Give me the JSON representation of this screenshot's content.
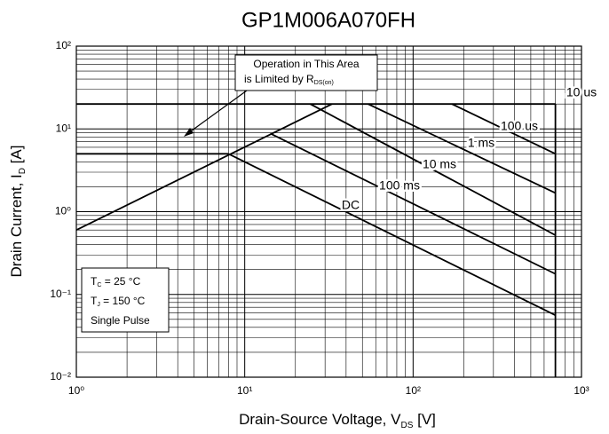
{
  "chart_data": {
    "type": "line",
    "title": "GP1M006A070FH",
    "xlabel": {
      "text": "Drain-Source Voltage, V",
      "sub": "DS",
      "rest": " [V]"
    },
    "ylabel": {
      "text": "Drain Current, I",
      "sub": "D",
      "rest": " [A]"
    },
    "log_x": true,
    "log_y": true,
    "grid": true,
    "xlim": [
      1,
      1000
    ],
    "ylim": [
      0.01,
      100
    ],
    "xticks": [
      {
        "value": 1,
        "label": "10⁰"
      },
      {
        "value": 10,
        "label": "10¹"
      },
      {
        "value": 100,
        "label": "10²"
      },
      {
        "value": 1000,
        "label": "10³"
      }
    ],
    "yticks": [
      {
        "value": 0.01,
        "label": "10⁻²"
      },
      {
        "value": 0.1,
        "label": "10⁻¹"
      },
      {
        "value": 1,
        "label": "10⁰"
      },
      {
        "value": 10,
        "label": "10¹"
      },
      {
        "value": 100,
        "label": "10²"
      }
    ],
    "series": [
      {
        "color": "#000000",
        "x": [
          1,
          33
        ],
        "values": [
          0.6,
          20
        ]
      },
      {
        "color": "#000000",
        "x": [
          1,
          8
        ],
        "values": [
          5,
          5
        ]
      },
      {
        "name": "10 us",
        "color": "#000000",
        "x": [
          1,
          700
        ],
        "values": [
          20,
          20
        ]
      },
      {
        "name": "100 us",
        "color": "#000000",
        "x": [
          170,
          700
        ],
        "values": [
          20,
          5
        ]
      },
      {
        "name": "1 ms",
        "color": "#000000",
        "x": [
          54,
          700
        ],
        "values": [
          20,
          1.68
        ]
      },
      {
        "name": "10 ms",
        "color": "#000000",
        "x": [
          24.5,
          700
        ],
        "values": [
          20,
          0.52
        ]
      },
      {
        "name": "100 ms",
        "color": "#000000",
        "x": [
          14.2,
          700
        ],
        "values": [
          8.8,
          0.177
        ]
      },
      {
        "name": "DC",
        "color": "#000000",
        "x": [
          8,
          700
        ],
        "values": [
          5,
          0.056
        ]
      },
      {
        "color": "#000000",
        "x": [
          700,
          700
        ],
        "values": [
          20,
          0.01
        ]
      }
    ],
    "annotation": {
      "line1": "Operation in This Area",
      "line2": "is Limited by R",
      "sub": "DS(on)"
    },
    "conditions": [
      {
        "text": "T",
        "sub": "C",
        "rest": " = 25 °C"
      },
      {
        "text": "T",
        "sub": "J",
        "rest": " = 150 °C"
      },
      {
        "text": "Single Pulse"
      }
    ]
  }
}
